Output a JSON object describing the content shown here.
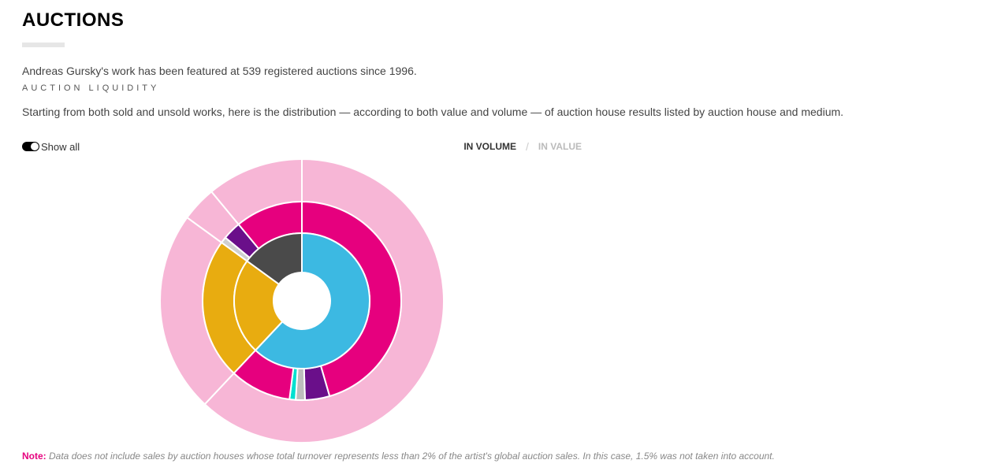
{
  "heading": "AUCTIONS",
  "intro": "Andreas Gursky's work has been featured at 539 registered auctions since 1996.",
  "subheading": "AUCTION LIQUIDITY",
  "description": "Starting from both sold and unsold works, here is the distribution — according to both value and volume — of auction house results listed by auction house and medium.",
  "toggle": {
    "label": "Show all",
    "on": true
  },
  "tabs": {
    "volume": "IN VOLUME",
    "separator": "/",
    "value": "IN VALUE",
    "active": "volume"
  },
  "note": {
    "label": "Note:",
    "text": " Data does not include sales by auction houses whose total turnover represents less than 2% of the artist's global auction sales. In this case, 1.5% was not taken into account."
  },
  "chart": {
    "type": "sunburst-3ring",
    "background": "#ffffff",
    "stroke": "#ffffff",
    "stroke_width": 2,
    "size": 360,
    "inner_hole_r": 36,
    "ring1": {
      "r_in": 36,
      "r_out": 86
    },
    "ring2": {
      "r_in": 86,
      "r_out": 126
    },
    "ring3": {
      "r_in": 126,
      "r_out": 180
    },
    "rotation_start_deg": -90,
    "ring1_slices": [
      {
        "pct": 62,
        "color": "#3cb9e2"
      },
      {
        "pct": 23,
        "color": "#e8ac10"
      },
      {
        "pct": 15,
        "color": "#4a4a4a"
      }
    ],
    "ring2_slices": [
      {
        "pct": 45.5,
        "color": "#e6007e"
      },
      {
        "pct": 4,
        "color": "#6a0f8a"
      },
      {
        "pct": 1.5,
        "color": "#bdbdbd"
      },
      {
        "pct": 1,
        "color": "#00e0d0"
      },
      {
        "pct": 10,
        "color": "#e6007e"
      },
      {
        "pct": 23,
        "color": "#e8ac10"
      },
      {
        "pct": 1,
        "color": "#cfcfcf"
      },
      {
        "pct": 3,
        "color": "#6a0f8a"
      },
      {
        "pct": 11,
        "color": "#e6007e"
      }
    ],
    "ring3_slices": [
      {
        "pct": 62,
        "color": "#f7b6d6"
      },
      {
        "pct": 23,
        "color": "#f7b6d6"
      },
      {
        "pct": 4,
        "color": "#f7b6d6"
      },
      {
        "pct": 11,
        "color": "#f7b6d6"
      }
    ]
  }
}
